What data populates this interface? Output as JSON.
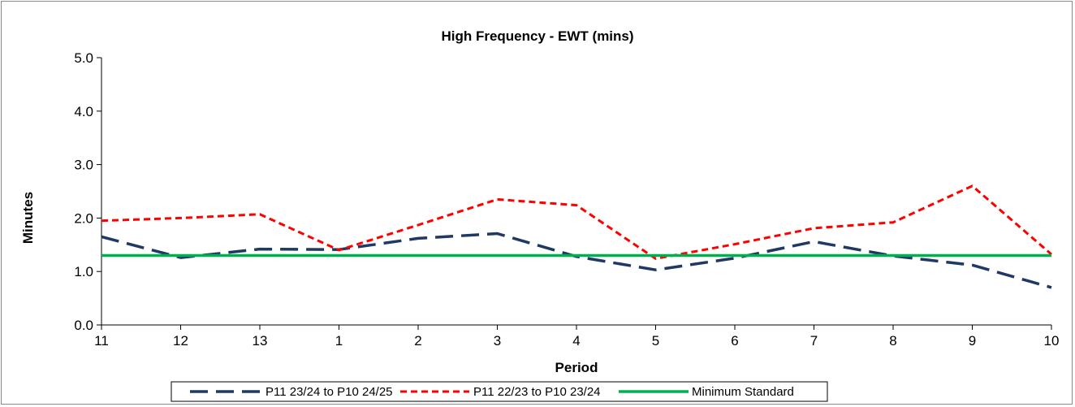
{
  "chart_data": {
    "type": "line",
    "title": "High Frequency - EWT (mins)",
    "xlabel": "Period",
    "ylabel": "Minutes",
    "categories": [
      "11",
      "12",
      "13",
      "1",
      "2",
      "3",
      "4",
      "5",
      "6",
      "7",
      "8",
      "9",
      "10"
    ],
    "ylim": [
      0,
      5
    ],
    "yticks": [
      "0.0",
      "1.0",
      "2.0",
      "3.0",
      "4.0",
      "5.0"
    ],
    "grid": false,
    "legend_position": "bottom",
    "series": [
      {
        "name": "P11 23/24 to P10 24/25",
        "values": [
          1.65,
          1.26,
          1.42,
          1.41,
          1.62,
          1.71,
          1.28,
          1.03,
          1.25,
          1.56,
          1.29,
          1.12,
          0.7
        ],
        "color": "#1F3864",
        "dash": "long-dash"
      },
      {
        "name": "P11 22/23 to P10 23/24",
        "values": [
          1.95,
          2.0,
          2.07,
          1.4,
          1.87,
          2.35,
          2.24,
          1.24,
          1.51,
          1.81,
          1.92,
          2.6,
          1.32
        ],
        "color": "#FF0000",
        "dash": "short-dash"
      },
      {
        "name": "Minimum Standard",
        "values": [
          1.3,
          1.3,
          1.3,
          1.3,
          1.3,
          1.3,
          1.3,
          1.3,
          1.3,
          1.3,
          1.3,
          1.3,
          1.3
        ],
        "color": "#00B050",
        "dash": "solid"
      }
    ]
  }
}
